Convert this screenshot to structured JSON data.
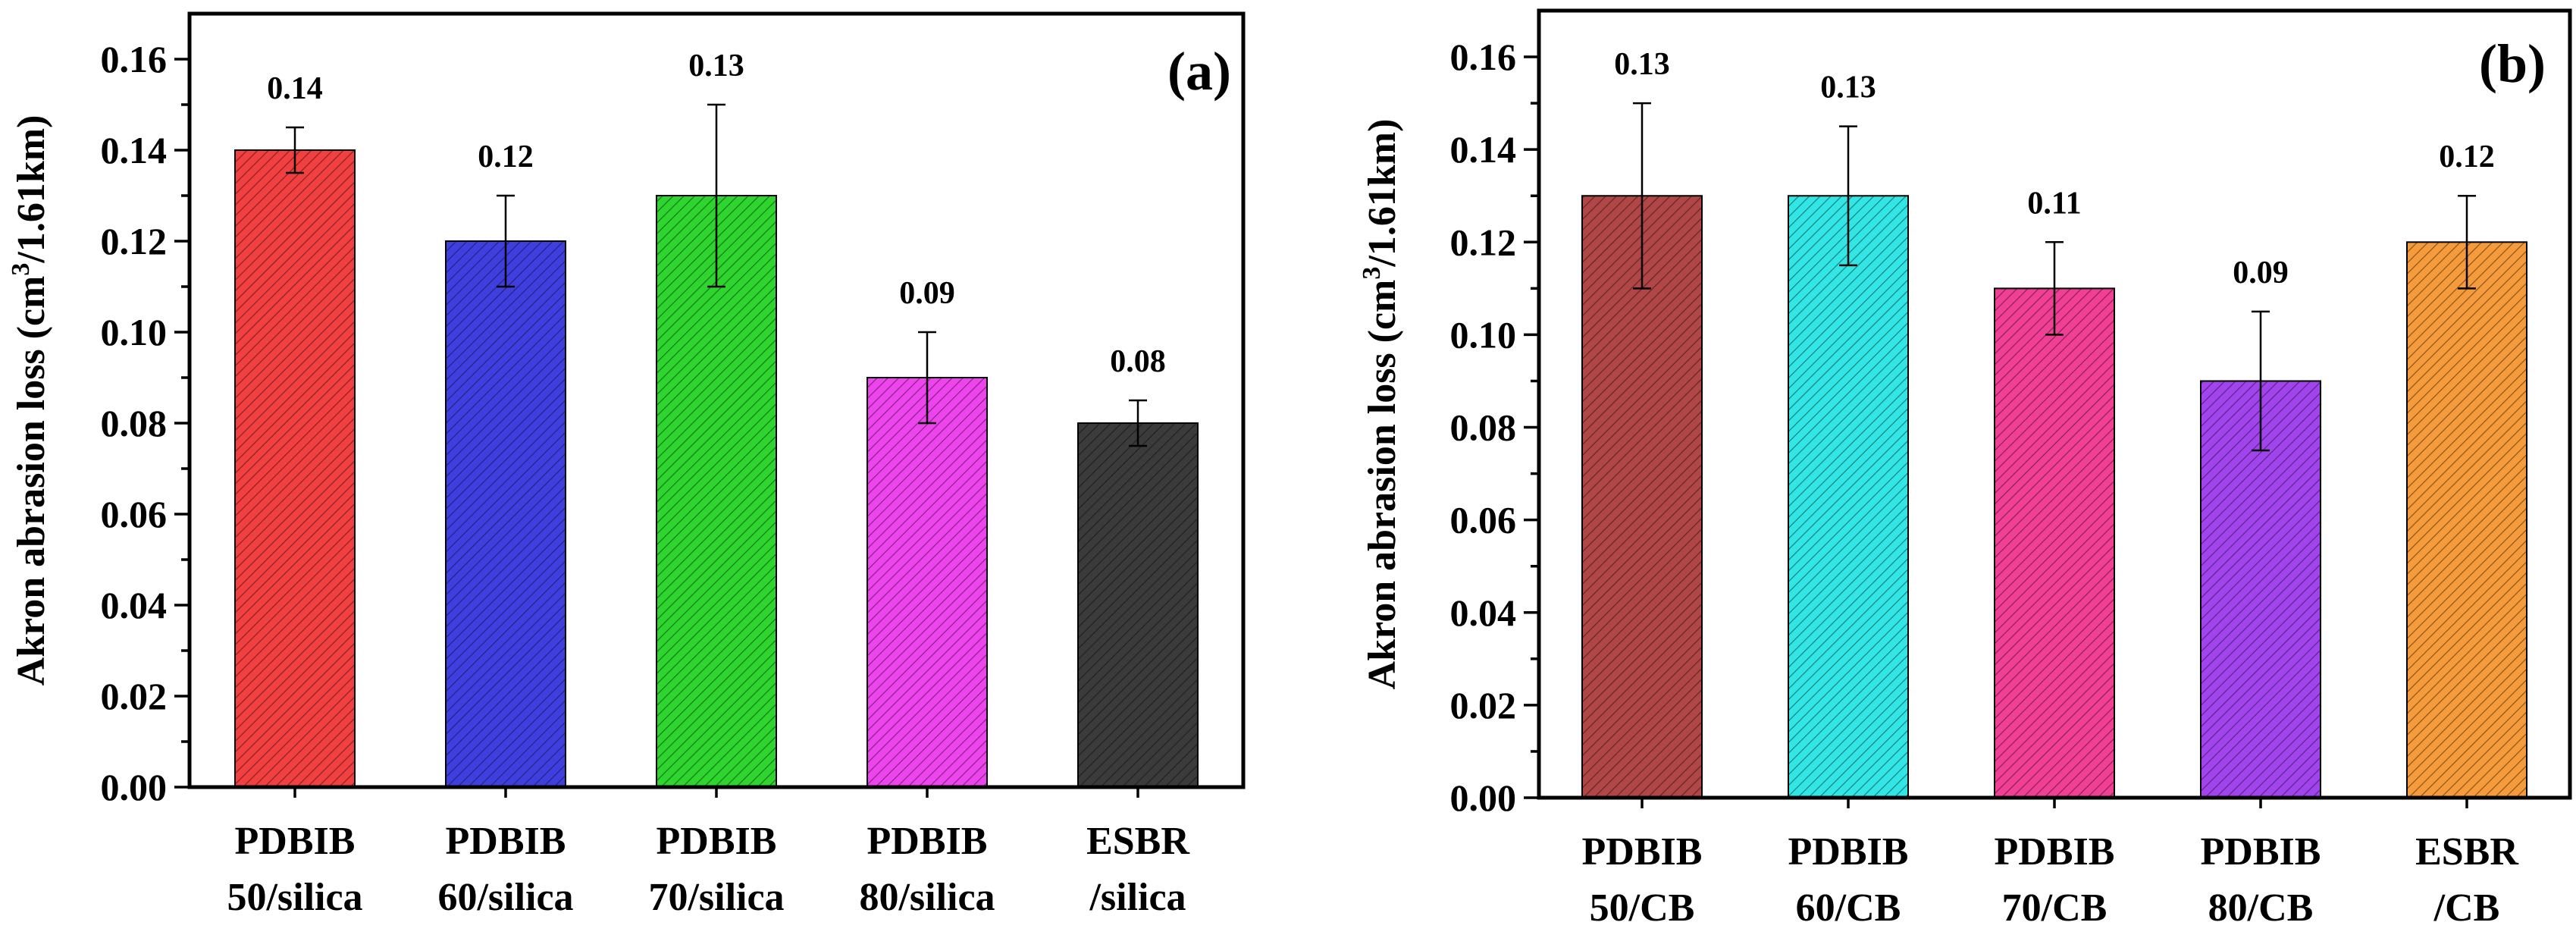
{
  "chart_data": [
    {
      "type": "bar",
      "panel_label": "(a)",
      "ylabel": "Akron abrasion loss (cm3/1.61km)",
      "ylabel_main": "Akron abrasion loss (cm",
      "ylabel_sup": "3",
      "ylabel_tail": "/1.61km)",
      "ylim": [
        0,
        0.17
      ],
      "yticks": [
        "0.00",
        "0.02",
        "0.04",
        "0.06",
        "0.08",
        "0.10",
        "0.12",
        "0.14",
        "0.16"
      ],
      "categories": [
        [
          "PDBIB",
          "50/silica"
        ],
        [
          "PDBIB",
          "60/silica"
        ],
        [
          "PDBIB",
          "70/silica"
        ],
        [
          "PDBIB",
          "80/silica"
        ],
        [
          "ESBR",
          "/silica"
        ]
      ],
      "values": [
        0.14,
        0.12,
        0.13,
        0.09,
        0.08
      ],
      "errors": [
        0.005,
        0.01,
        0.02,
        0.01,
        0.005
      ],
      "value_labels": [
        "0.14",
        "0.12",
        "0.13",
        "0.09",
        "0.08"
      ],
      "colors": [
        "#f23f3f",
        "#3f3fe0",
        "#2fd52f",
        "#ee44ee",
        "#3b3b3b"
      ],
      "hatch": "diagonal",
      "grid": false
    },
    {
      "type": "bar",
      "panel_label": "(b)",
      "ylabel": "Akron abrasion loss (cm3/1.61km)",
      "ylabel_main": "Akron abrasion loss (cm",
      "ylabel_sup": "3",
      "ylabel_tail": "/1.61km)",
      "ylim": [
        0,
        0.17
      ],
      "yticks": [
        "0.00",
        "0.02",
        "0.04",
        "0.06",
        "0.08",
        "0.10",
        "0.12",
        "0.14",
        "0.16"
      ],
      "categories": [
        [
          "PDBIB",
          "50/CB"
        ],
        [
          "PDBIB",
          "60/CB"
        ],
        [
          "PDBIB",
          "70/CB"
        ],
        [
          "PDBIB",
          "80/CB"
        ],
        [
          "ESBR",
          "/CB"
        ]
      ],
      "values": [
        0.13,
        0.13,
        0.11,
        0.09,
        0.12
      ],
      "errors": [
        0.02,
        0.015,
        0.01,
        0.015,
        0.01
      ],
      "value_labels": [
        "0.13",
        "0.13",
        "0.11",
        "0.09",
        "0.12"
      ],
      "colors": [
        "#b14646",
        "#33e6e6",
        "#f23f96",
        "#a244ee",
        "#f59b3b"
      ],
      "hatch": "diagonal",
      "grid": false
    }
  ]
}
